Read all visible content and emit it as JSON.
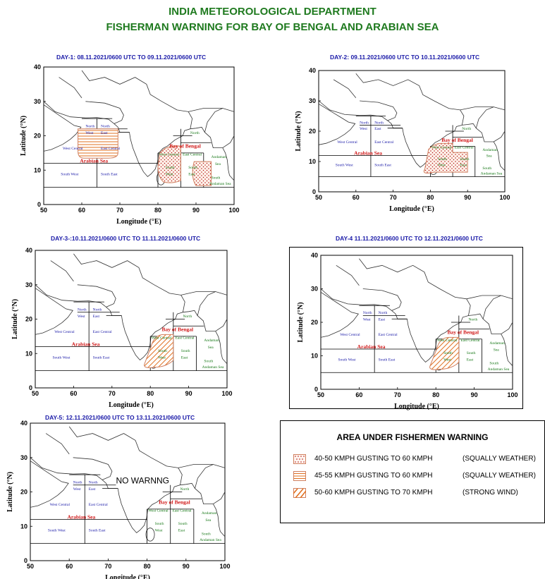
{
  "header": {
    "title": "INDIA METEOROLOGICAL DEPARTMENT",
    "subtitle": "FISHERMAN WARNING  FOR BAY OF  BENGAL AND ARABIAN SEA"
  },
  "axis": {
    "xlabel": "Longitude (°E)",
    "ylabel": "Latitude (°N)",
    "xticks": [
      "50",
      "60",
      "70",
      "80",
      "90",
      "100"
    ],
    "yticks": [
      "0",
      "10",
      "20",
      "30",
      "40"
    ],
    "xlim": [
      50,
      100
    ],
    "ylim": [
      0,
      40
    ]
  },
  "region_labels": {
    "north_west": [
      "North",
      "West"
    ],
    "north_east": [
      "North",
      "East"
    ],
    "west_central": "West Central",
    "east_central": "East Central",
    "south_west": "South West",
    "south_east": "South East",
    "arabian_sea": "Arabian Sea",
    "bay_of_bengal": "Bay of Bengal",
    "bob_north": "North",
    "bob_west_central": "West Central",
    "bob_east_central": "East Central",
    "bob_south_west": [
      "South",
      "West"
    ],
    "bob_south_east": [
      "South",
      "East"
    ],
    "andaman": [
      "Andaman",
      "Sea"
    ],
    "south_andaman": [
      "South",
      "Andaman Sea"
    ]
  },
  "days": [
    {
      "label": "DAY-1: 08.11.2021/0600 UTC TO  09.11.2021/0600 UTC",
      "note": "",
      "warnings": [
        {
          "category": "strong_wind",
          "area": "Arabian Sea East Central"
        },
        {
          "category": "squally_40_50",
          "area": "Bay of Bengal West Central / South West"
        },
        {
          "category": "squally_40_50",
          "area": "Andaman Sea"
        }
      ]
    },
    {
      "label": "DAY-2:  09.11.2021/0600 UTC TO  10.11.2021/0600 UTC",
      "note": "",
      "warnings": [
        {
          "category": "squally_40_50",
          "area": "Bay of Bengal South West / West Central"
        }
      ]
    },
    {
      "label": "DAY-3-:10.11.2021/0600 UTC TO  11.11.2021/0600 UTC",
      "note": "",
      "warnings": [
        {
          "category": "strong_wind",
          "area": "Bay of Bengal South West / West Central"
        }
      ]
    },
    {
      "label": "DAY-4  11.11.2021/0600 UTC TO  12.11.2021/0600 UTC",
      "note": "",
      "warnings": [
        {
          "category": "strong_wind",
          "area": "Bay of Bengal South West / West Central"
        }
      ]
    },
    {
      "label": "DAY-5:  12.11.2021/0600 UTC TO  13.11.2021/0600 UTC",
      "note": "NO WARNNG",
      "warnings": []
    }
  ],
  "legend": {
    "title": "AREA UNDER FISHERMEN WARNING",
    "items": [
      {
        "pattern": "dots",
        "speed": "40-50 KMPH GUSTING TO 60 KMPH",
        "type": "(SQUALLY WEATHER)"
      },
      {
        "pattern": "hlines",
        "speed": "45-55 KMPH GUSTING TO 60 KMPH",
        "type": "(SQUALLY WEATHER)"
      },
      {
        "pattern": "diag",
        "speed": "50-60 KMPH GUSTING TO 70 KMPH",
        "type": "(STRONG WIND)"
      }
    ]
  },
  "colors": {
    "header": "#1f7a1f",
    "day_label": "#1a1aa8",
    "region_label": "#1a1aa8",
    "arabian_label": "#d01818",
    "bob_label": "#d01818",
    "bob_region_label": "#1a7a1a",
    "squally_dot": "#b01010",
    "hatch": "#e07020",
    "warning_border": "#d08060"
  }
}
